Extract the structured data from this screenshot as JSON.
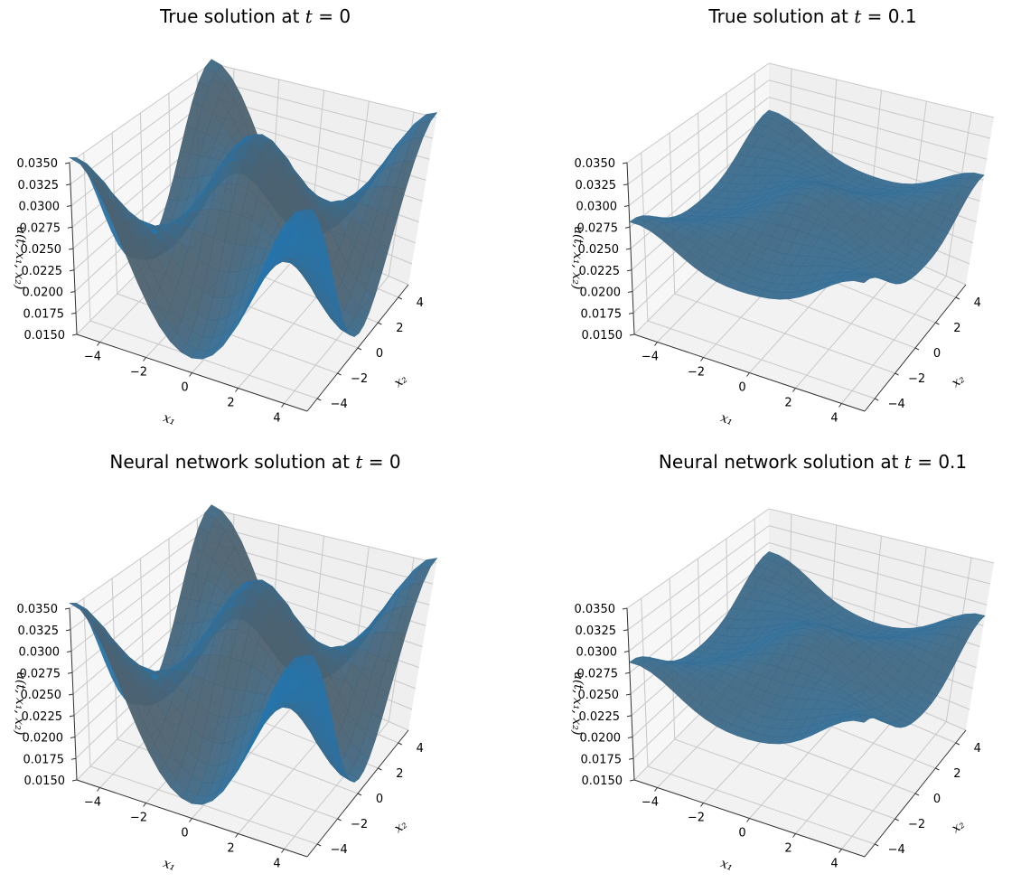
{
  "chart_data": [
    {
      "type": "surface",
      "title_prefix": "True solution at ",
      "title_var": "t",
      "title_eq": " = ",
      "title_val": "0",
      "xlabel": "x₁",
      "ylabel": "x₂",
      "zlabel": "u(t, x₁, x₂)",
      "xlim": [
        -5,
        5
      ],
      "ylim": [
        -5,
        5
      ],
      "zlim": [
        0.015,
        0.035
      ],
      "x_ticks": [
        "−4",
        "−2",
        "0",
        "2",
        "4"
      ],
      "y_ticks": [
        "−4",
        "−2",
        "0",
        "2",
        "4"
      ],
      "z_ticks": [
        "0.0150",
        "0.0175",
        "0.0200",
        "0.0225",
        "0.0250",
        "0.0275",
        "0.0300",
        "0.0325",
        "0.0350"
      ],
      "surface": {
        "base": 0.0253,
        "amp1": 0.0095,
        "amp2": 0.0008,
        "corner_dip": 0.0
      },
      "surface_color": "#1f77b4",
      "grid": true
    },
    {
      "type": "surface",
      "title_prefix": "True solution at ",
      "title_var": "t",
      "title_eq": " = ",
      "title_val": "0.1",
      "xlabel": "x₁",
      "ylabel": "x₂",
      "zlabel": "u(t, x₁, x₂)",
      "xlim": [
        -5,
        5
      ],
      "ylim": [
        -5,
        5
      ],
      "zlim": [
        0.015,
        0.035
      ],
      "x_ticks": [
        "−4",
        "−2",
        "0",
        "2",
        "4"
      ],
      "y_ticks": [
        "−4",
        "−2",
        "0",
        "2",
        "4"
      ],
      "z_ticks": [
        "0.0150",
        "0.0175",
        "0.0200",
        "0.0225",
        "0.0250",
        "0.0275",
        "0.0300",
        "0.0325",
        "0.0350"
      ],
      "surface": {
        "base": 0.0262,
        "amp1": 0.0025,
        "amp2": 0.0004,
        "corner_dip": -0.001
      },
      "surface_color": "#1f77b4",
      "grid": true
    },
    {
      "type": "surface",
      "title_prefix": "Neural network solution at ",
      "title_var": "t",
      "title_eq": " = ",
      "title_val": "0",
      "xlabel": "x₁",
      "ylabel": "x₂",
      "zlabel": "u(t, x₁, x₂)",
      "xlim": [
        -5,
        5
      ],
      "ylim": [
        -5,
        5
      ],
      "zlim": [
        0.015,
        0.035
      ],
      "x_ticks": [
        "−4",
        "−2",
        "0",
        "2",
        "4"
      ],
      "y_ticks": [
        "−4",
        "−2",
        "0",
        "2",
        "4"
      ],
      "z_ticks": [
        "0.0150",
        "0.0175",
        "0.0200",
        "0.0225",
        "0.0250",
        "0.0275",
        "0.0300",
        "0.0325",
        "0.0350"
      ],
      "surface": {
        "base": 0.0253,
        "amp1": 0.0095,
        "amp2": 0.0008,
        "corner_dip": 0.0
      },
      "surface_color": "#1f77b4",
      "grid": true
    },
    {
      "type": "surface",
      "title_prefix": "Neural network solution at ",
      "title_var": "t",
      "title_eq": " = ",
      "title_val": "0.1",
      "xlabel": "x₁",
      "ylabel": "x₂",
      "zlabel": "u(t, x₁, x₂)",
      "xlim": [
        -5,
        5
      ],
      "ylim": [
        -5,
        5
      ],
      "zlim": [
        0.015,
        0.035
      ],
      "x_ticks": [
        "−4",
        "−2",
        "0",
        "2",
        "4"
      ],
      "y_ticks": [
        "−4",
        "−2",
        "0",
        "2",
        "4"
      ],
      "z_ticks": [
        "0.0150",
        "0.0175",
        "0.0200",
        "0.0225",
        "0.0250",
        "0.0275",
        "0.0300",
        "0.0325",
        "0.0350"
      ],
      "surface": {
        "base": 0.0265,
        "amp1": 0.0028,
        "amp2": 0.0004,
        "corner_dip": -0.001
      },
      "surface_color": "#1f77b4",
      "grid": true
    }
  ]
}
